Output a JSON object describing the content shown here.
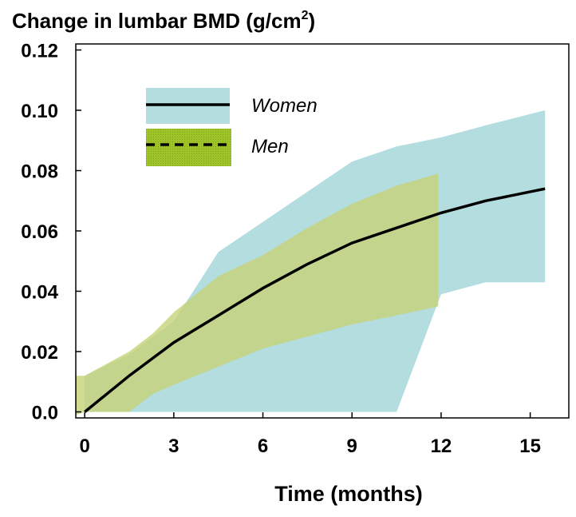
{
  "chart_data": {
    "type": "area",
    "title": "Change in lumbar BMD (g/cm",
    "title_superscript": "2",
    "title_suffix": ")",
    "xlabel": "Time (months)",
    "ylabel": "",
    "xlim": [
      -0.3,
      16.3
    ],
    "ylim": [
      -0.002,
      0.122
    ],
    "x_ticks": [
      0,
      3,
      6,
      9,
      12,
      15
    ],
    "y_ticks": [
      0.0,
      0.02,
      0.04,
      0.06,
      0.08,
      0.1,
      0.12
    ],
    "y_tick_labels": [
      "0.0",
      "0.02",
      "0.04",
      "0.06",
      "0.08",
      "0.10",
      "0.12"
    ],
    "grid": false,
    "legend_position": "top-left",
    "series": [
      {
        "name": "Women",
        "line_style": "solid",
        "band_color": "#b4dde0",
        "x": [
          0,
          1.5,
          3,
          4.5,
          6,
          7.5,
          9,
          10.5,
          12,
          13.5,
          15.5
        ],
        "mean": [
          0.0,
          0.012,
          0.023,
          0.032,
          0.041,
          0.049,
          0.056,
          0.061,
          0.066,
          0.07,
          0.074
        ],
        "upper": [
          0.012,
          0.019,
          0.03,
          0.053,
          0.063,
          0.073,
          0.083,
          0.088,
          0.091,
          0.095,
          0.1
        ],
        "lower": [
          0.0,
          0.0,
          0.0,
          0.0,
          0.0,
          0.0,
          0.0,
          0.0,
          0.039,
          0.043,
          0.043
        ]
      },
      {
        "name": "Men",
        "line_style": "dashed",
        "band_color": "#d7ec84",
        "x": [
          -0.3,
          0,
          1.5,
          2.3,
          3,
          4.5,
          6,
          7.5,
          9,
          10.5,
          11.9
        ],
        "mean": [
          0.0,
          0.0,
          0.012,
          0.018,
          0.023,
          0.032,
          0.041,
          0.049,
          0.056,
          0.061,
          0.066
        ],
        "upper": [
          0.012,
          0.012,
          0.02,
          0.026,
          0.033,
          0.045,
          0.052,
          0.061,
          0.069,
          0.075,
          0.079
        ],
        "lower": [
          -0.001,
          0.0,
          0.0,
          0.006,
          0.009,
          0.015,
          0.021,
          0.025,
          0.029,
          0.032,
          0.035
        ]
      }
    ],
    "colors": {
      "women_band": "#b4dde0",
      "men_band": "#d7ec84",
      "overlap_band": "#c4c89a",
      "men_legend_swatch": "#9fc42a",
      "line": "#000000"
    }
  }
}
